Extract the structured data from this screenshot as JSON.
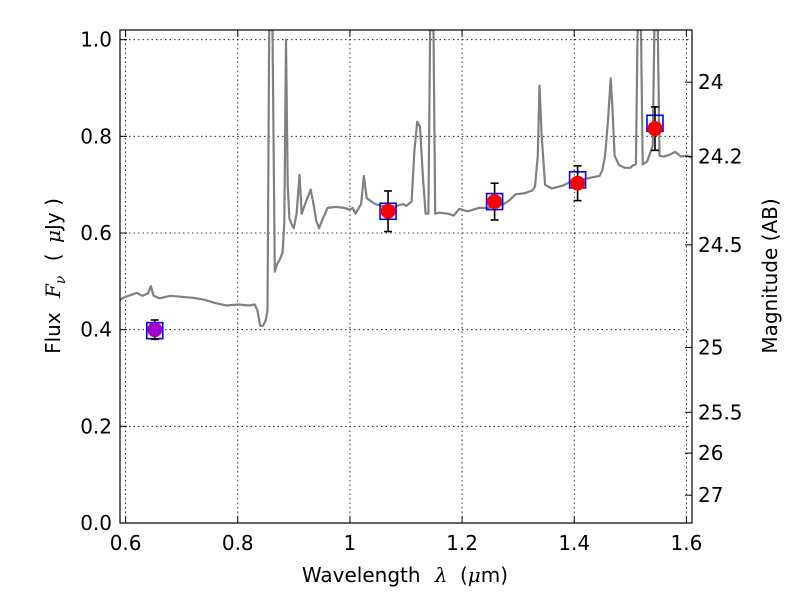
{
  "chart_data": {
    "type": "scatter",
    "xlabel": {
      "prefix": "Wavelength",
      "symbol": "λ",
      "unit_open": "(",
      "unit_mu": "μ",
      "unit_rest": "m)"
    },
    "ylabel": {
      "prefix": "Flux",
      "symbol": "F",
      "subscript": "ν",
      "unit_open": "(",
      "unit_mu": "μ",
      "unit_rest": "Jy )"
    },
    "ylabel_right": "Magnitude (AB)",
    "xlim": [
      0.59,
      1.61
    ],
    "ylim": [
      0.0,
      1.02
    ],
    "grid": true,
    "x_ticks": [
      {
        "value": 0.6,
        "label": "0.6"
      },
      {
        "value": 0.8,
        "label": "0.8"
      },
      {
        "value": 1.0,
        "label": "1"
      },
      {
        "value": 1.2,
        "label": "1.2"
      },
      {
        "value": 1.4,
        "label": "1.4"
      },
      {
        "value": 1.6,
        "label": "1.6"
      }
    ],
    "y_ticks": [
      {
        "value": 0.0,
        "label": "0.0"
      },
      {
        "value": 0.2,
        "label": "0.2"
      },
      {
        "value": 0.4,
        "label": "0.4"
      },
      {
        "value": 0.6,
        "label": "0.6"
      },
      {
        "value": 0.8,
        "label": "0.8"
      },
      {
        "value": 1.0,
        "label": "1.0"
      }
    ],
    "mag_ticks": [
      {
        "mag": 24,
        "label": "24"
      },
      {
        "mag": 24.2,
        "label": "24.2"
      },
      {
        "mag": 24.5,
        "label": "24.5"
      },
      {
        "mag": 25,
        "label": "25"
      },
      {
        "mag": 25.5,
        "label": "25.5"
      },
      {
        "mag": 26,
        "label": "26"
      },
      {
        "mag": 27,
        "label": "27"
      }
    ],
    "series": [
      {
        "kind": "line",
        "color": "#808080",
        "points": [
          [
            0.59,
            0.462
          ],
          [
            0.6,
            0.468
          ],
          [
            0.61,
            0.472
          ],
          [
            0.62,
            0.476
          ],
          [
            0.63,
            0.47
          ],
          [
            0.64,
            0.475
          ],
          [
            0.645,
            0.49
          ],
          [
            0.65,
            0.47
          ],
          [
            0.66,
            0.465
          ],
          [
            0.68,
            0.47
          ],
          [
            0.7,
            0.468
          ],
          [
            0.72,
            0.466
          ],
          [
            0.74,
            0.462
          ],
          [
            0.76,
            0.455
          ],
          [
            0.78,
            0.45
          ],
          [
            0.8,
            0.452
          ],
          [
            0.82,
            0.45
          ],
          [
            0.83,
            0.452
          ],
          [
            0.835,
            0.44
          ],
          [
            0.84,
            0.408
          ],
          [
            0.845,
            0.408
          ],
          [
            0.85,
            0.42
          ],
          [
            0.853,
            0.44
          ],
          [
            0.856,
            1.02
          ],
          [
            0.862,
            1.02
          ],
          [
            0.866,
            0.52
          ],
          [
            0.87,
            0.535
          ],
          [
            0.875,
            0.545
          ],
          [
            0.88,
            0.56
          ],
          [
            0.883,
            0.62
          ],
          [
            0.886,
            1.0
          ],
          [
            0.889,
            0.7
          ],
          [
            0.892,
            0.63
          ],
          [
            0.896,
            0.618
          ],
          [
            0.9,
            0.61
          ],
          [
            0.905,
            0.64
          ],
          [
            0.91,
            0.72
          ],
          [
            0.914,
            0.64
          ],
          [
            0.92,
            0.66
          ],
          [
            0.925,
            0.675
          ],
          [
            0.93,
            0.69
          ],
          [
            0.935,
            0.66
          ],
          [
            0.94,
            0.625
          ],
          [
            0.945,
            0.61
          ],
          [
            0.95,
            0.625
          ],
          [
            0.96,
            0.652
          ],
          [
            0.975,
            0.654
          ],
          [
            0.99,
            0.652
          ],
          [
            1.0,
            0.648
          ],
          [
            1.005,
            0.652
          ],
          [
            1.01,
            0.64
          ],
          [
            1.015,
            0.65
          ],
          [
            1.02,
            0.66
          ],
          [
            1.025,
            0.718
          ],
          [
            1.03,
            0.672
          ],
          [
            1.045,
            0.66
          ],
          [
            1.06,
            0.655
          ],
          [
            1.08,
            0.655
          ],
          [
            1.095,
            0.66
          ],
          [
            1.1,
            0.656
          ],
          [
            1.11,
            0.665
          ],
          [
            1.115,
            0.77
          ],
          [
            1.12,
            0.83
          ],
          [
            1.125,
            0.82
          ],
          [
            1.13,
            0.72
          ],
          [
            1.135,
            0.64
          ],
          [
            1.14,
            0.64
          ],
          [
            1.143,
            1.02
          ],
          [
            1.149,
            1.02
          ],
          [
            1.152,
            0.64
          ],
          [
            1.16,
            0.642
          ],
          [
            1.175,
            0.64
          ],
          [
            1.185,
            0.636
          ],
          [
            1.195,
            0.65
          ],
          [
            1.21,
            0.645
          ],
          [
            1.23,
            0.652
          ],
          [
            1.245,
            0.652
          ],
          [
            1.26,
            0.656
          ],
          [
            1.275,
            0.66
          ],
          [
            1.285,
            0.668
          ],
          [
            1.295,
            0.68
          ],
          [
            1.31,
            0.682
          ],
          [
            1.325,
            0.688
          ],
          [
            1.33,
            0.696
          ],
          [
            1.335,
            0.76
          ],
          [
            1.338,
            0.905
          ],
          [
            1.342,
            0.8
          ],
          [
            1.348,
            0.7
          ],
          [
            1.36,
            0.692
          ],
          [
            1.38,
            0.698
          ],
          [
            1.39,
            0.704
          ],
          [
            1.4,
            0.708
          ],
          [
            1.42,
            0.712
          ],
          [
            1.435,
            0.716
          ],
          [
            1.445,
            0.718
          ],
          [
            1.45,
            0.73
          ],
          [
            1.455,
            0.76
          ],
          [
            1.46,
            0.83
          ],
          [
            1.465,
            0.92
          ],
          [
            1.468,
            0.86
          ],
          [
            1.472,
            0.76
          ],
          [
            1.48,
            0.74
          ],
          [
            1.49,
            0.735
          ],
          [
            1.498,
            0.735
          ],
          [
            1.5,
            0.735
          ],
          [
            1.505,
            0.74
          ],
          [
            1.51,
            0.742
          ],
          [
            1.513,
            1.02
          ],
          [
            1.519,
            1.02
          ],
          [
            1.522,
            0.742
          ],
          [
            1.53,
            0.748
          ],
          [
            1.54,
            0.78
          ],
          [
            1.543,
            1.02
          ],
          [
            1.549,
            1.02
          ],
          [
            1.552,
            0.76
          ],
          [
            1.56,
            0.758
          ],
          [
            1.57,
            0.762
          ],
          [
            1.58,
            0.768
          ],
          [
            1.59,
            0.758
          ],
          [
            1.6,
            0.76
          ],
          [
            1.61,
            0.756
          ]
        ]
      },
      {
        "kind": "model_squares",
        "color": "#0000ff",
        "points": [
          [
            0.652,
            0.398
          ],
          [
            1.068,
            0.645
          ],
          [
            1.258,
            0.665
          ],
          [
            1.406,
            0.71
          ],
          [
            1.544,
            0.827
          ]
        ]
      },
      {
        "kind": "observed",
        "color": "#ff0000",
        "points": [
          {
            "x": 0.652,
            "y": 0.4,
            "err": 0.02,
            "color": "#a000c8"
          },
          {
            "x": 1.068,
            "y": 0.645,
            "err": 0.042,
            "color": "#ff0000"
          },
          {
            "x": 1.258,
            "y": 0.665,
            "err": 0.038,
            "color": "#ff0000"
          },
          {
            "x": 1.406,
            "y": 0.703,
            "err": 0.036,
            "color": "#ff0000"
          },
          {
            "x": 1.544,
            "y": 0.816,
            "err": 0.045,
            "color": "#ff0000"
          }
        ]
      }
    ]
  }
}
